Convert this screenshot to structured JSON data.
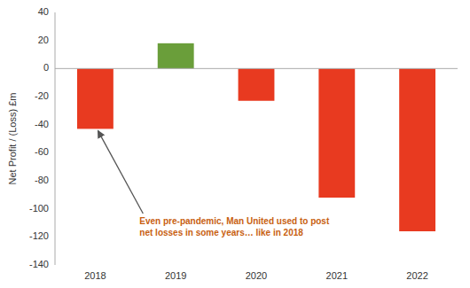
{
  "chart_data": {
    "type": "bar",
    "categories": [
      "2018",
      "2019",
      "2020",
      "2021",
      "2022"
    ],
    "values": [
      -43,
      18,
      -23,
      -92,
      -116
    ],
    "colors": [
      "#e83a20",
      "#6a9e3a",
      "#e83a20",
      "#e83a20",
      "#e83a20"
    ],
    "y_label": "Net Profit / (Loss) £m",
    "ylim": [
      -140,
      40
    ],
    "yticks": [
      -140,
      -120,
      -100,
      -80,
      -60,
      -40,
      -20,
      0,
      20,
      40
    ],
    "annotations": [
      {
        "text": "Even pre-pandemic, Man United used to post\nnet losses in some years… like in 2018",
        "category": "2018"
      }
    ],
    "grid": false
  }
}
